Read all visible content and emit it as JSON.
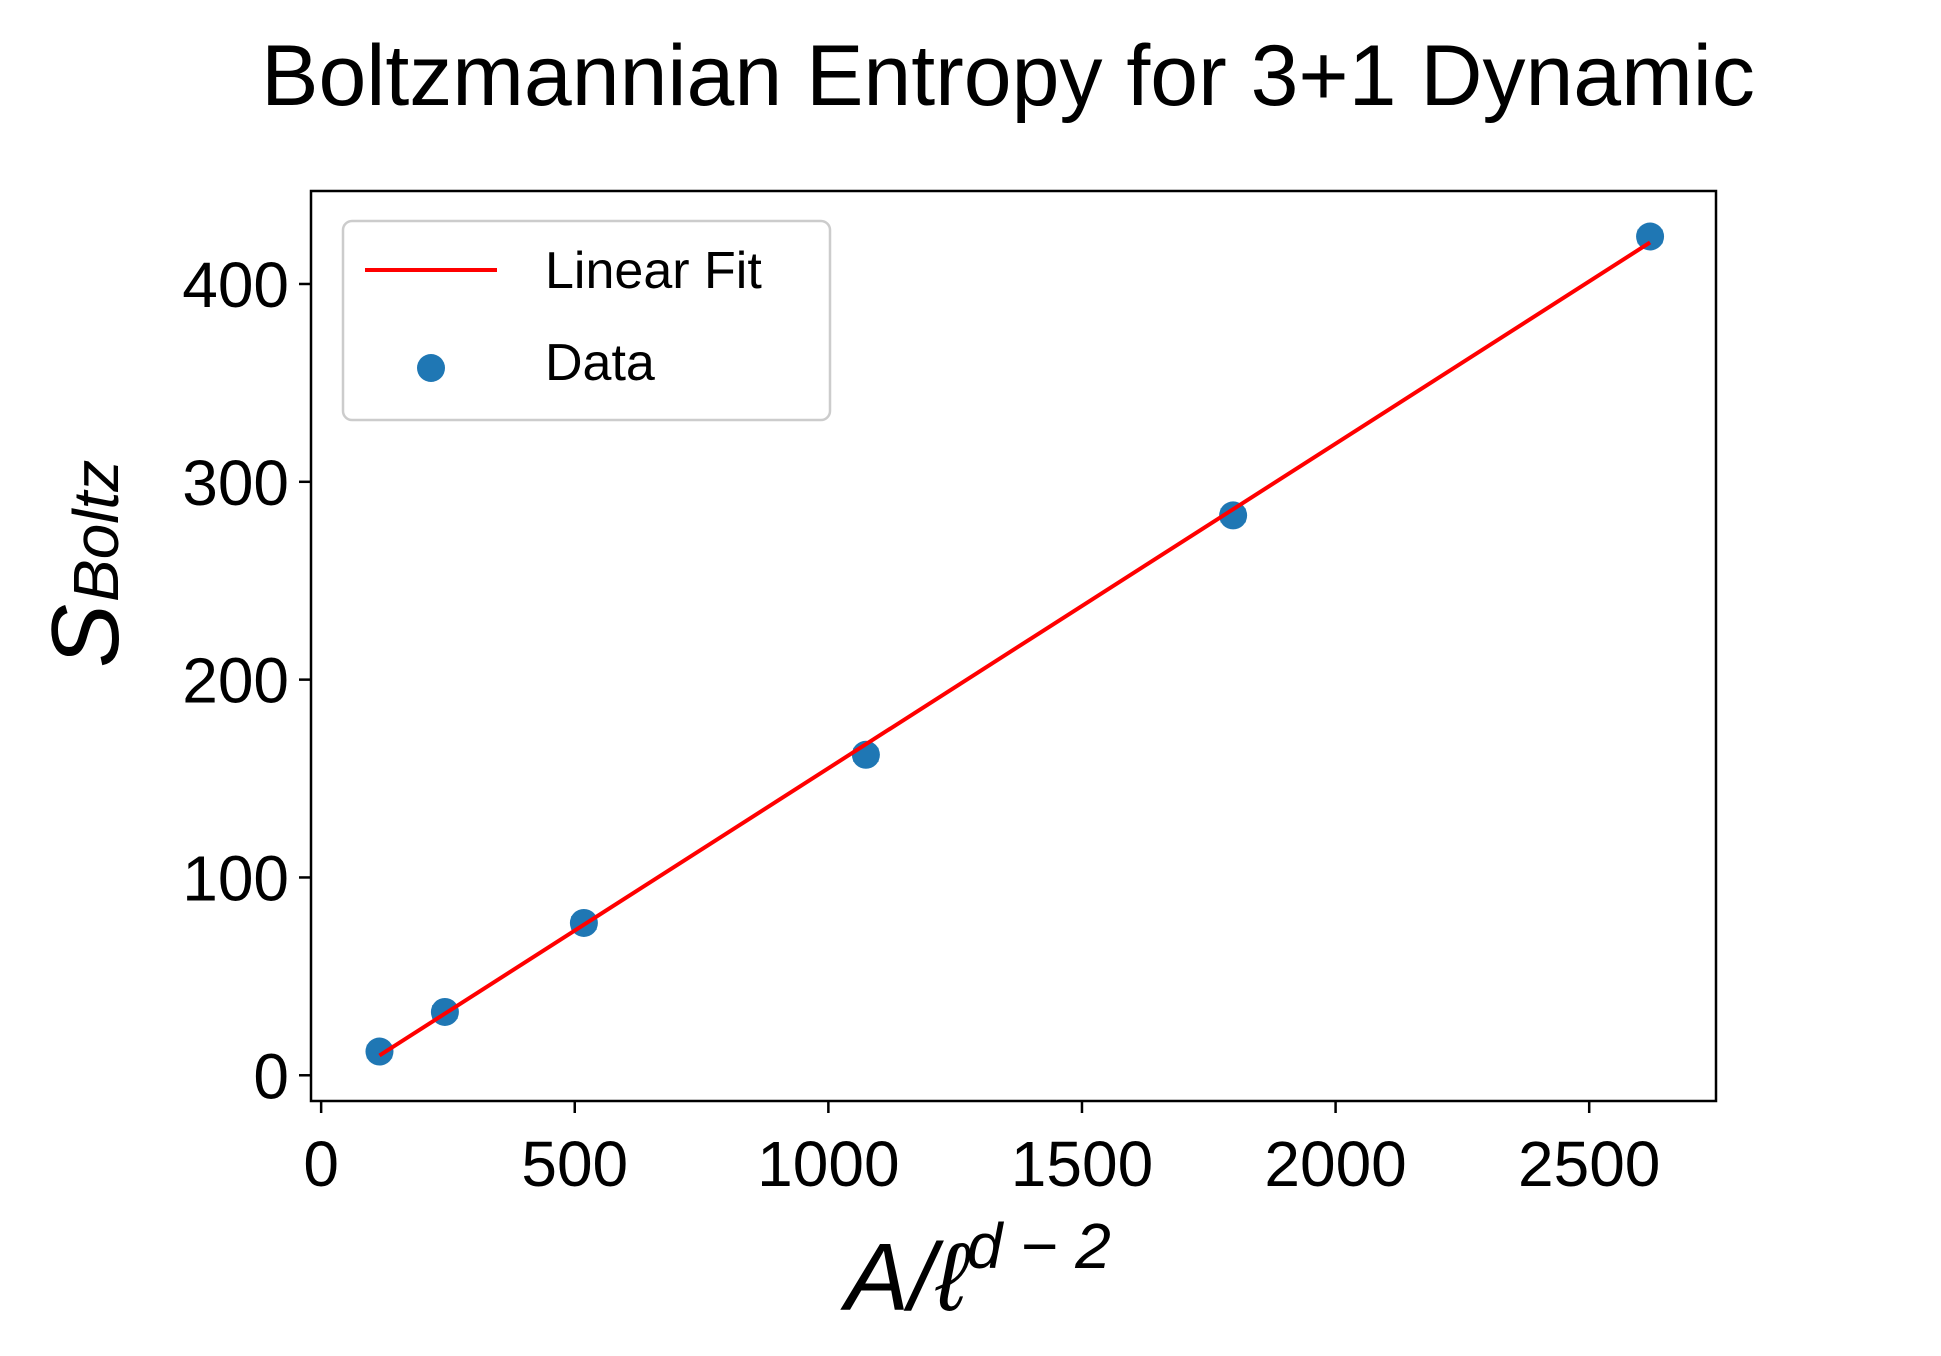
{
  "chart_data": {
    "type": "scatter",
    "title": "Boltzmannian Entropy for 3+1 Dynamic",
    "xlabel": {
      "base": "A/ℓ",
      "superscript": "d − 2"
    },
    "ylabel": {
      "base": "S",
      "subscript": "Boltz"
    },
    "xlim": [
      -20,
      2750
    ],
    "ylim": [
      -13,
      447
    ],
    "x_ticks": [
      {
        "value": 0,
        "label": "0"
      },
      {
        "value": 500,
        "label": "500"
      },
      {
        "value": 1000,
        "label": "1000"
      },
      {
        "value": 1500,
        "label": "1500"
      },
      {
        "value": 2000,
        "label": "2000"
      },
      {
        "value": 2500,
        "label": "2500"
      }
    ],
    "y_ticks": [
      {
        "value": 0,
        "label": "0"
      },
      {
        "value": 100,
        "label": "100"
      },
      {
        "value": 200,
        "label": "200"
      },
      {
        "value": 300,
        "label": "300"
      },
      {
        "value": 400,
        "label": "400"
      }
    ],
    "grid": false,
    "legend_position": "top-left",
    "series": [
      {
        "name": "Linear Fit",
        "kind": "line",
        "color": "#ff0000",
        "x": [
          115,
          2620
        ],
        "y": [
          10,
          421
        ]
      },
      {
        "name": "Data",
        "kind": "scatter",
        "color": "#1f77b4",
        "error_bars": true,
        "x": [
          115,
          244,
          518,
          1074,
          1798,
          2620
        ],
        "y": [
          12,
          32,
          77,
          162,
          283,
          424
        ],
        "xerr": [
          22,
          22,
          22,
          22,
          22,
          22
        ]
      }
    ]
  }
}
